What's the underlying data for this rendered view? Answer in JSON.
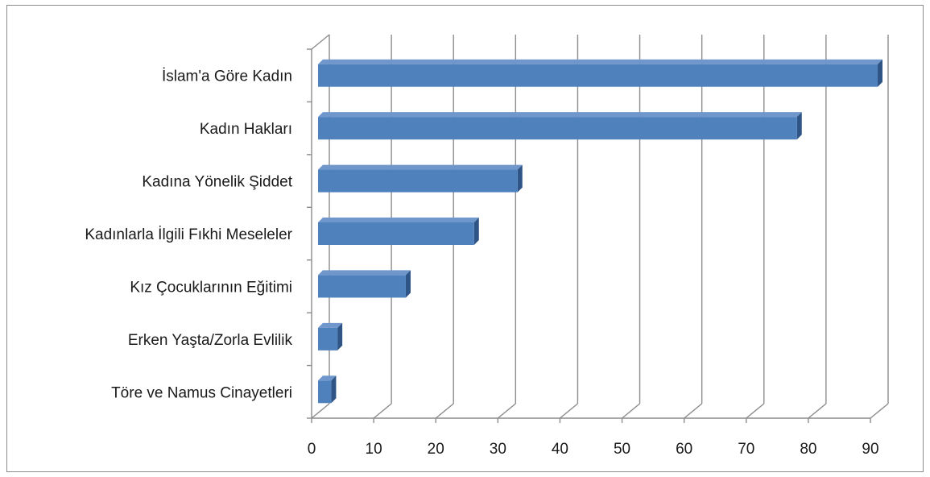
{
  "chart_data": {
    "type": "bar",
    "orientation": "horizontal",
    "three_d": true,
    "title": "",
    "xlabel": "",
    "ylabel": "",
    "xlim": [
      0,
      90
    ],
    "x_ticks": [
      "0",
      "10",
      "20",
      "30",
      "40",
      "50",
      "60",
      "70",
      "80",
      "90"
    ],
    "grid": true,
    "legend": "none",
    "categories": [
      "İslam'a Göre Kadın",
      "Kadın Hakları",
      "Kadına Yönelik Şiddet",
      "Kadınlarla İlgili Fıkhi Meseleler",
      "Kız Çocuklarının Eğitimi",
      "Erken Yaşta/Zorla Evlilik",
      "Töre ve Namus Cinayetleri"
    ],
    "values": [
      90,
      77,
      32,
      25,
      14,
      3,
      2
    ],
    "colors": {
      "bar_front": "#4f81bd",
      "bar_top": "#6f97cc",
      "bar_side": "#2f5586",
      "grid": "#8c8c8c"
    }
  }
}
